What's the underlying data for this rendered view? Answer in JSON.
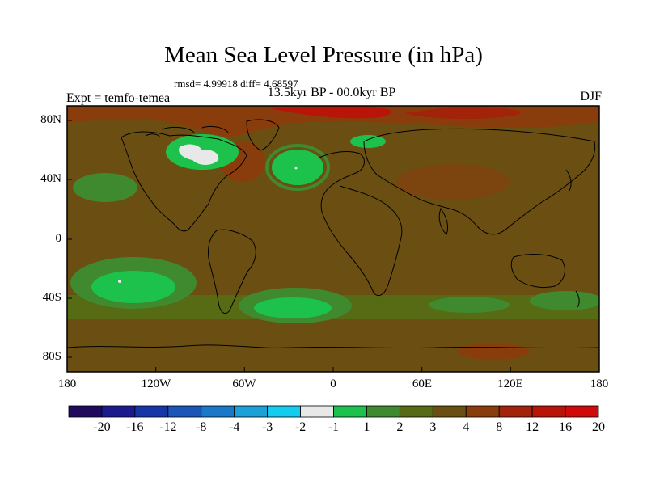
{
  "header": {
    "title": "Mean Sea Level Pressure (in hPa)",
    "stats": "rmsd= 4.99918  diff= 4.68597",
    "left_label": "Expt = temfo-temea",
    "center_label": "13.5kyr BP - 00.0kyr BP",
    "right_label": "DJF"
  },
  "map": {
    "lat_ticks": [
      "80N",
      "40N",
      "0",
      "40S",
      "80S"
    ],
    "lon_ticks": [
      "180",
      "120W",
      "60W",
      "0",
      "60E",
      "120E",
      "180"
    ],
    "background_color": "#6b4f12",
    "land_outline_color": "#000000"
  },
  "legend": {
    "colors": [
      "#1f0a5e",
      "#1c1b8e",
      "#1636a8",
      "#1a56b8",
      "#1a78c8",
      "#1ca0d8",
      "#14ccee",
      "#e8e8e8",
      "#1cc24c",
      "#3f8a2e",
      "#566b14",
      "#6b4f12",
      "#8a3d0c",
      "#a2220a",
      "#b81408",
      "#d00a08"
    ],
    "labels": [
      "-20",
      "-16",
      "-12",
      "-8",
      "-4",
      "-3",
      "-2",
      "-1",
      "1",
      "2",
      "3",
      "4",
      "8",
      "12",
      "16",
      "20"
    ]
  }
}
